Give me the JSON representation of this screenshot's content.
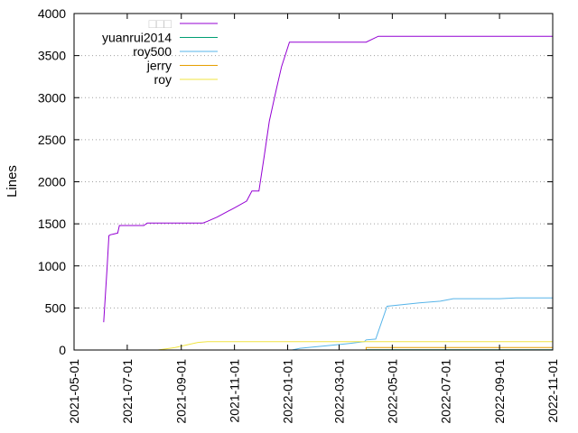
{
  "chart_data": {
    "type": "line",
    "title": "",
    "xlabel": "",
    "ylabel": "Lines",
    "xlim": [
      "2021-05-01",
      "2022-11-01"
    ],
    "ylim": [
      0,
      4000
    ],
    "grid": "horizontal-dotted",
    "legend_placement": "top-left",
    "x_tick_labels": [
      "2021-05-01",
      "2021-07-01",
      "2021-09-01",
      "2021-11-01",
      "2022-01-01",
      "2022-03-01",
      "2022-05-01",
      "2022-07-01",
      "2022-09-01",
      "2022-11-01"
    ],
    "y_tick_labels": [
      "0",
      "500",
      "1000",
      "1500",
      "2000",
      "2500",
      "3000",
      "3500",
      "4000"
    ],
    "series": [
      {
        "name": "□□□",
        "color": "#9400d3",
        "points": [
          [
            "2021-06-04",
            330
          ],
          [
            "2021-06-08",
            1000
          ],
          [
            "2021-06-10",
            1360
          ],
          [
            "2021-06-12",
            1370
          ],
          [
            "2021-06-20",
            1390
          ],
          [
            "2021-06-22",
            1480
          ],
          [
            "2021-07-20",
            1480
          ],
          [
            "2021-07-24",
            1510
          ],
          [
            "2021-09-26",
            1510
          ],
          [
            "2021-10-01",
            1530
          ],
          [
            "2021-10-12",
            1580
          ],
          [
            "2021-11-01",
            1690
          ],
          [
            "2021-11-15",
            1770
          ],
          [
            "2021-11-21",
            1890
          ],
          [
            "2021-11-29",
            1890
          ],
          [
            "2021-12-05",
            2300
          ],
          [
            "2021-12-11",
            2720
          ],
          [
            "2021-12-19",
            3100
          ],
          [
            "2021-12-25",
            3370
          ],
          [
            "2022-01-03",
            3660
          ],
          [
            "2022-04-01",
            3660
          ],
          [
            "2022-04-15",
            3730
          ],
          [
            "2022-11-01",
            3730
          ]
        ]
      },
      {
        "name": "yuanrui2014",
        "color": "#009e73",
        "points": [
          [
            "2022-04-01",
            2
          ],
          [
            "2022-11-01",
            2
          ]
        ]
      },
      {
        "name": "roy500",
        "color": "#56b4e9",
        "points": [
          [
            "2022-01-06",
            0
          ],
          [
            "2022-01-15",
            20
          ],
          [
            "2022-02-15",
            50
          ],
          [
            "2022-03-15",
            80
          ],
          [
            "2022-03-30",
            100
          ],
          [
            "2022-04-01",
            120
          ],
          [
            "2022-04-12",
            130
          ],
          [
            "2022-04-25",
            520
          ],
          [
            "2022-06-01",
            560
          ],
          [
            "2022-06-25",
            580
          ],
          [
            "2022-07-10",
            610
          ],
          [
            "2022-09-01",
            610
          ],
          [
            "2022-09-20",
            620
          ],
          [
            "2022-11-01",
            620
          ]
        ]
      },
      {
        "name": "jerry",
        "color": "#e69f00",
        "points": [
          [
            "2022-04-01",
            0
          ],
          [
            "2022-04-01",
            30
          ],
          [
            "2022-11-01",
            30
          ]
        ]
      },
      {
        "name": "roy",
        "color": "#f0e442",
        "points": [
          [
            "2021-08-05",
            0
          ],
          [
            "2021-08-25",
            30
          ],
          [
            "2021-09-20",
            90
          ],
          [
            "2021-10-01",
            100
          ],
          [
            "2022-11-01",
            100
          ]
        ]
      }
    ]
  }
}
